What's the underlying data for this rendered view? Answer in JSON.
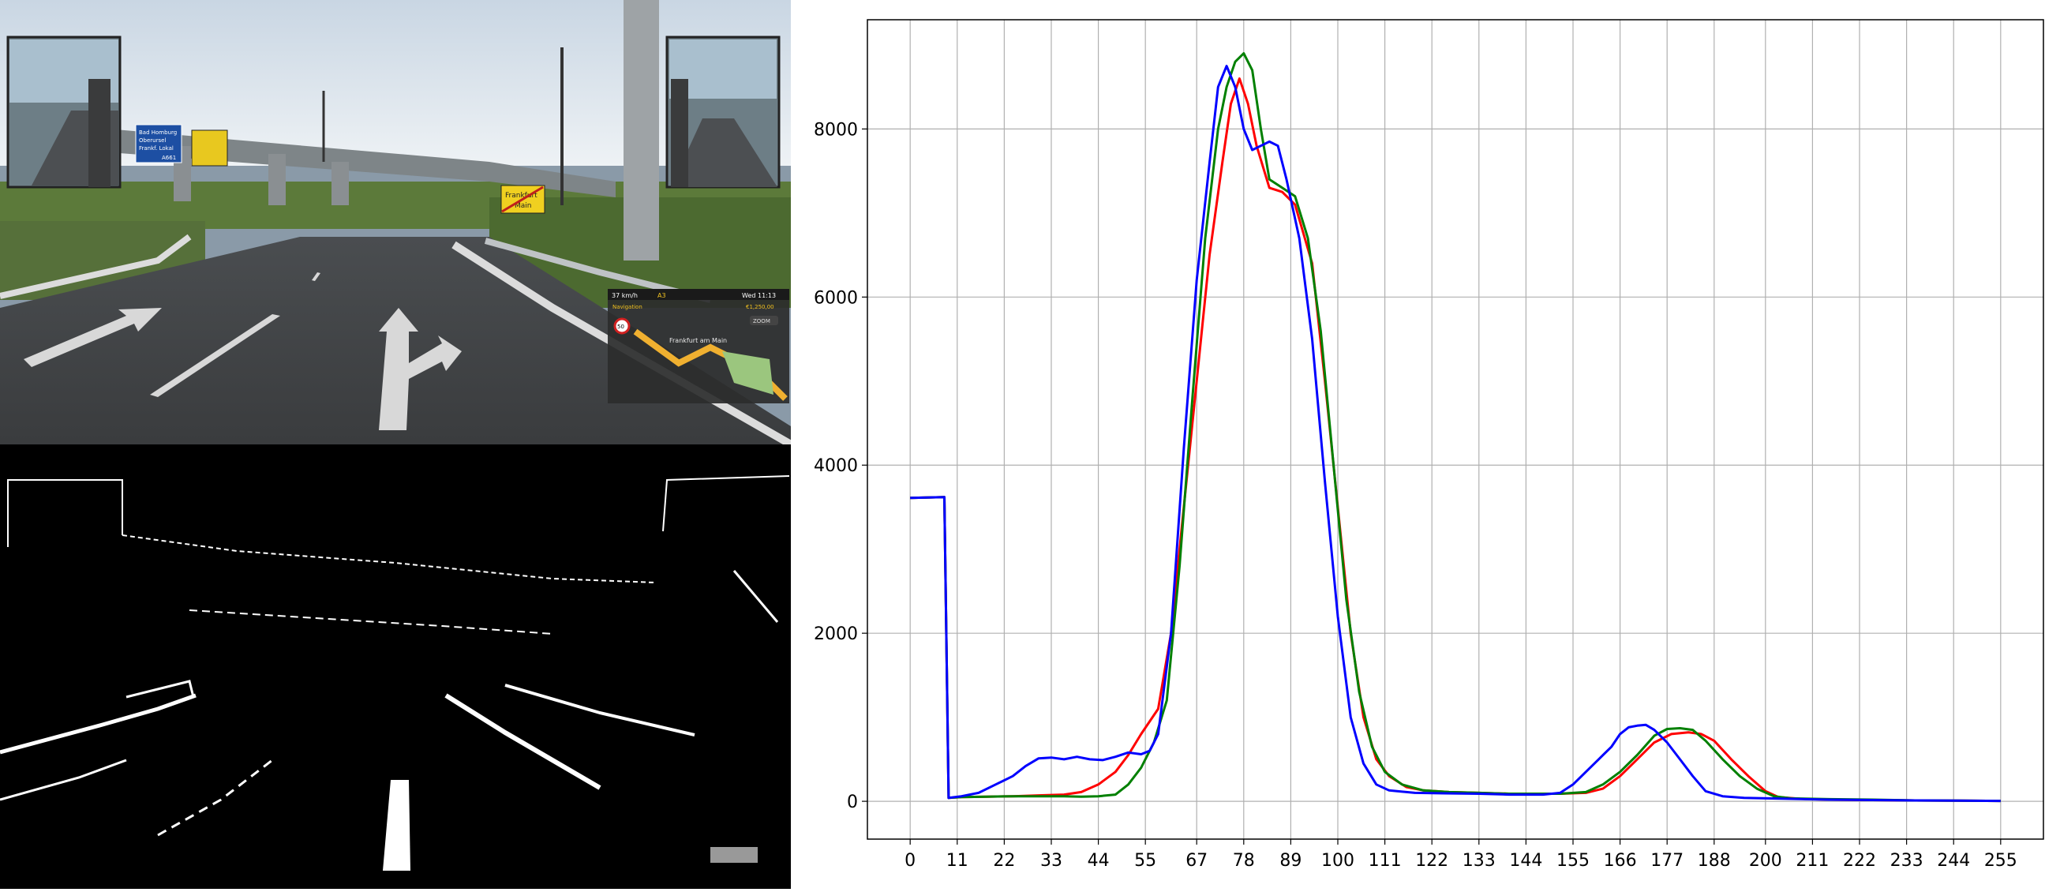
{
  "hud": {
    "speed": "37 km/h",
    "road": "A3",
    "time": "Wed 11:13",
    "nav_label": "Navigation",
    "money": "€1,250,00",
    "zoom_chip": "ZOOM",
    "map_city": "Frankfurt am Main",
    "speed_limit": "50"
  },
  "signs": {
    "left_blue_lines": [
      "Bad Homburg",
      "Oberursel",
      "Frankf. Lokal"
    ],
    "left_blue_exit": "A661",
    "yellow_sign": "",
    "town_end_lines": [
      "Frankfurt",
      "Main"
    ]
  },
  "colors": {
    "red": "#ff0000",
    "green": "#008000",
    "blue": "#0000ff",
    "grid": "#b0b0b0"
  },
  "chart_data": {
    "type": "line",
    "title": "",
    "xlabel": "",
    "ylabel": "",
    "xlim": [
      -10,
      265
    ],
    "ylim": [
      -450,
      9300
    ],
    "x_ticks": [
      0,
      11,
      22,
      33,
      44,
      55,
      67,
      78,
      89,
      100,
      111,
      122,
      133,
      144,
      155,
      166,
      177,
      188,
      200,
      211,
      222,
      233,
      244,
      255
    ],
    "x_tick_labels": [
      "0",
      "11",
      "22",
      "33",
      "44",
      "55",
      "67",
      "78",
      "89",
      "100",
      "111",
      "122",
      "133",
      "144",
      "155",
      "166",
      "177",
      "188",
      "200",
      "211",
      "222",
      "233",
      "244",
      "255"
    ],
    "y_ticks": [
      0,
      2000,
      4000,
      6000,
      8000
    ],
    "y_tick_labels": [
      "0",
      "2000",
      "4000",
      "6000",
      "8000"
    ],
    "grid": true,
    "series": [
      {
        "color": "#ff0000",
        "points": [
          [
            0,
            3610
          ],
          [
            8,
            3620
          ],
          [
            9,
            40
          ],
          [
            12,
            50
          ],
          [
            18,
            55
          ],
          [
            24,
            60
          ],
          [
            30,
            70
          ],
          [
            36,
            80
          ],
          [
            40,
            110
          ],
          [
            44,
            200
          ],
          [
            48,
            350
          ],
          [
            51,
            550
          ],
          [
            54,
            800
          ],
          [
            58,
            1100
          ],
          [
            61,
            2000
          ],
          [
            64,
            3500
          ],
          [
            67,
            5000
          ],
          [
            70,
            6500
          ],
          [
            73,
            7600
          ],
          [
            75,
            8300
          ],
          [
            77,
            8600
          ],
          [
            79,
            8300
          ],
          [
            81,
            7800
          ],
          [
            84,
            7300
          ],
          [
            87,
            7250
          ],
          [
            90,
            7100
          ],
          [
            94,
            6400
          ],
          [
            97,
            5000
          ],
          [
            100,
            3500
          ],
          [
            103,
            2000
          ],
          [
            106,
            1000
          ],
          [
            109,
            500
          ],
          [
            112,
            300
          ],
          [
            116,
            170
          ],
          [
            120,
            130
          ],
          [
            126,
            110
          ],
          [
            133,
            100
          ],
          [
            140,
            90
          ],
          [
            146,
            90
          ],
          [
            152,
            90
          ],
          [
            158,
            100
          ],
          [
            162,
            150
          ],
          [
            166,
            300
          ],
          [
            170,
            500
          ],
          [
            174,
            700
          ],
          [
            178,
            800
          ],
          [
            182,
            820
          ],
          [
            185,
            800
          ],
          [
            188,
            720
          ],
          [
            192,
            500
          ],
          [
            196,
            300
          ],
          [
            200,
            120
          ],
          [
            203,
            50
          ],
          [
            208,
            30
          ],
          [
            215,
            20
          ],
          [
            225,
            15
          ],
          [
            235,
            10
          ],
          [
            245,
            8
          ],
          [
            255,
            5
          ]
        ]
      },
      {
        "color": "#008000",
        "points": [
          [
            0,
            3610
          ],
          [
            8,
            3620
          ],
          [
            9,
            40
          ],
          [
            12,
            50
          ],
          [
            18,
            55
          ],
          [
            24,
            60
          ],
          [
            30,
            60
          ],
          [
            36,
            60
          ],
          [
            40,
            55
          ],
          [
            44,
            60
          ],
          [
            48,
            80
          ],
          [
            51,
            200
          ],
          [
            54,
            400
          ],
          [
            57,
            700
          ],
          [
            60,
            1200
          ],
          [
            63,
            2800
          ],
          [
            66,
            4800
          ],
          [
            69,
            6700
          ],
          [
            72,
            8000
          ],
          [
            74,
            8500
          ],
          [
            76,
            8800
          ],
          [
            78,
            8900
          ],
          [
            80,
            8700
          ],
          [
            82,
            8000
          ],
          [
            84,
            7400
          ],
          [
            87,
            7300
          ],
          [
            90,
            7200
          ],
          [
            93,
            6700
          ],
          [
            96,
            5600
          ],
          [
            99,
            4000
          ],
          [
            102,
            2400
          ],
          [
            105,
            1300
          ],
          [
            108,
            650
          ],
          [
            111,
            350
          ],
          [
            115,
            200
          ],
          [
            120,
            130
          ],
          [
            126,
            110
          ],
          [
            133,
            100
          ],
          [
            140,
            90
          ],
          [
            146,
            90
          ],
          [
            152,
            90
          ],
          [
            158,
            110
          ],
          [
            162,
            200
          ],
          [
            166,
            350
          ],
          [
            170,
            550
          ],
          [
            174,
            780
          ],
          [
            177,
            860
          ],
          [
            180,
            870
          ],
          [
            183,
            850
          ],
          [
            186,
            720
          ],
          [
            190,
            500
          ],
          [
            194,
            300
          ],
          [
            198,
            150
          ],
          [
            202,
            60
          ],
          [
            206,
            35
          ],
          [
            215,
            25
          ],
          [
            225,
            20
          ],
          [
            235,
            10
          ],
          [
            245,
            8
          ],
          [
            255,
            5
          ]
        ]
      },
      {
        "color": "#0000ff",
        "points": [
          [
            0,
            3610
          ],
          [
            8,
            3620
          ],
          [
            9,
            40
          ],
          [
            12,
            60
          ],
          [
            16,
            100
          ],
          [
            20,
            200
          ],
          [
            24,
            300
          ],
          [
            27,
            420
          ],
          [
            30,
            510
          ],
          [
            33,
            520
          ],
          [
            36,
            500
          ],
          [
            39,
            530
          ],
          [
            42,
            500
          ],
          [
            45,
            490
          ],
          [
            48,
            530
          ],
          [
            51,
            580
          ],
          [
            54,
            560
          ],
          [
            56,
            600
          ],
          [
            58,
            800
          ],
          [
            61,
            2000
          ],
          [
            64,
            4200
          ],
          [
            67,
            6200
          ],
          [
            70,
            7600
          ],
          [
            72,
            8500
          ],
          [
            74,
            8750
          ],
          [
            76,
            8500
          ],
          [
            78,
            8000
          ],
          [
            80,
            7750
          ],
          [
            82,
            7800
          ],
          [
            84,
            7850
          ],
          [
            86,
            7800
          ],
          [
            88,
            7400
          ],
          [
            91,
            6700
          ],
          [
            94,
            5500
          ],
          [
            97,
            3800
          ],
          [
            100,
            2200
          ],
          [
            103,
            1000
          ],
          [
            106,
            450
          ],
          [
            109,
            200
          ],
          [
            112,
            130
          ],
          [
            118,
            100
          ],
          [
            125,
            95
          ],
          [
            133,
            90
          ],
          [
            140,
            80
          ],
          [
            148,
            80
          ],
          [
            152,
            100
          ],
          [
            155,
            200
          ],
          [
            158,
            350
          ],
          [
            161,
            500
          ],
          [
            164,
            650
          ],
          [
            166,
            800
          ],
          [
            168,
            880
          ],
          [
            170,
            900
          ],
          [
            172,
            910
          ],
          [
            174,
            850
          ],
          [
            177,
            700
          ],
          [
            180,
            500
          ],
          [
            183,
            300
          ],
          [
            186,
            120
          ],
          [
            190,
            60
          ],
          [
            195,
            40
          ],
          [
            205,
            30
          ],
          [
            215,
            20
          ],
          [
            225,
            15
          ],
          [
            235,
            10
          ],
          [
            245,
            8
          ],
          [
            255,
            5
          ]
        ]
      }
    ]
  }
}
